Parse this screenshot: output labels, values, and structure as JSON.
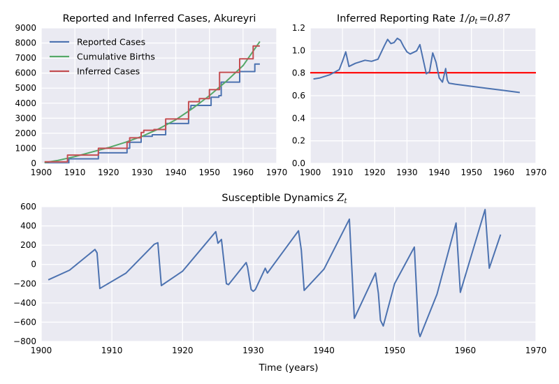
{
  "chart_data": [
    {
      "type": "line",
      "title": "Reported and Inferred Cases, Akureyri",
      "xlim": [
        1900,
        1970
      ],
      "ylim": [
        0,
        9000
      ],
      "xticks": [
        "1900",
        "1910",
        "1920",
        "1930",
        "1940",
        "1950",
        "1960",
        "1970"
      ],
      "yticks": [
        "0",
        "1000",
        "2000",
        "3000",
        "4000",
        "5000",
        "6000",
        "7000",
        "8000",
        "9000"
      ],
      "grid": true,
      "legend_position": "top-left",
      "series": [
        {
          "name": "Reported Cases",
          "color": "#4c72b0",
          "shape": "step",
          "x": [
            1901,
            1907.8,
            1908.2,
            1917,
            1925.5,
            1926.3,
            1929.7,
            1930.3,
            1933,
            1937,
            1943.8,
            1944.5,
            1950.5,
            1952.8,
            1953.5,
            1959,
            1963.5,
            1965
          ],
          "y": [
            0,
            0,
            300,
            700,
            1000,
            1400,
            1800,
            1800,
            1900,
            2650,
            3600,
            3850,
            4400,
            4500,
            5400,
            6100,
            6600,
            6600
          ]
        },
        {
          "name": "Cumulative Births",
          "color": "#55a868",
          "x": [
            1901,
            1905,
            1910,
            1915,
            1920,
            1925,
            1930,
            1935,
            1940,
            1945,
            1950,
            1955,
            1960,
            1965
          ],
          "y": [
            50,
            200,
            450,
            750,
            1050,
            1400,
            1800,
            2300,
            2900,
            3650,
            4500,
            5450,
            6500,
            8100
          ]
        },
        {
          "name": "Inferred Cases",
          "color": "#c44e52",
          "shape": "step",
          "x": [
            1901,
            1907.8,
            1917,
            1925.5,
            1926.3,
            1929.7,
            1930.5,
            1933.5,
            1937,
            1943.8,
            1947,
            1950,
            1953,
            1959,
            1963,
            1965
          ],
          "y": [
            100,
            550,
            1000,
            1400,
            1700,
            2050,
            2200,
            2250,
            2950,
            4100,
            4300,
            4900,
            6050,
            6950,
            7800,
            7800
          ]
        }
      ]
    },
    {
      "type": "line",
      "title_text": "Inferred Reporting Rate",
      "title_math": {
        "num": "1",
        "sym": "ρ",
        "sub": "t",
        "val": "=0.87"
      },
      "xlim": [
        1900,
        1970
      ],
      "ylim": [
        0.0,
        1.3
      ],
      "xticks": [
        "1900",
        "1910",
        "1920",
        "1930",
        "1940",
        "1950",
        "1960",
        "1970"
      ],
      "yticks": [
        "0.0",
        "0.2",
        "0.4",
        "0.6",
        "0.8",
        "1.0",
        "1.2"
      ],
      "grid": true,
      "hline": {
        "y": 0.87,
        "color": "#ff0000"
      },
      "series": [
        {
          "color": "#4c72b0",
          "x": [
            1901,
            1903,
            1906,
            1909,
            1910,
            1911,
            1912,
            1914,
            1917,
            1919,
            1921,
            1923,
            1924,
            1925,
            1926,
            1927,
            1928,
            1929,
            1930,
            1931,
            1933,
            1934,
            1935,
            1936,
            1937,
            1938,
            1939,
            1940,
            1941,
            1942,
            1942.5,
            1943,
            1945,
            1950,
            1955,
            1960,
            1965
          ],
          "y": [
            0.81,
            0.82,
            0.85,
            0.9,
            0.98,
            1.07,
            0.93,
            0.96,
            0.99,
            0.98,
            1.0,
            1.13,
            1.19,
            1.15,
            1.16,
            1.2,
            1.18,
            1.12,
            1.07,
            1.05,
            1.08,
            1.14,
            1.0,
            0.86,
            0.88,
            1.06,
            0.97,
            0.82,
            0.78,
            0.91,
            0.8,
            0.77,
            0.76,
            0.74,
            0.72,
            0.7,
            0.68
          ]
        }
      ]
    },
    {
      "type": "line",
      "title_text": "Susceptible Dynamics",
      "title_math": {
        "sym": "Z",
        "sub": "t"
      },
      "xlabel": "Time (years)",
      "xlim": [
        1900,
        1970
      ],
      "ylim": [
        -800,
        600
      ],
      "xticks": [
        "1900",
        "1910",
        "1920",
        "1930",
        "1940",
        "1950",
        "1960",
        "1970"
      ],
      "yticks": [
        "−800",
        "−600",
        "−400",
        "−200",
        "0",
        "200",
        "400",
        "600"
      ],
      "grid": true,
      "series": [
        {
          "color": "#4c72b0",
          "x": [
            1901,
            1904,
            1907.6,
            1907.9,
            1908.3,
            1912,
            1916,
            1916.5,
            1917,
            1920,
            1924.7,
            1925,
            1925.5,
            1926.2,
            1926.5,
            1929,
            1929.2,
            1929.7,
            1930,
            1930.3,
            1931.7,
            1932,
            1935,
            1936.4,
            1936.8,
            1937.2,
            1940,
            1943.6,
            1944.3,
            1947.3,
            1947.7,
            1948,
            1948.4,
            1950,
            1952.8,
            1953.4,
            1953.6,
            1956,
            1958.7,
            1959.3,
            1962.8,
            1963.4,
            1965
          ],
          "y": [
            -160,
            -60,
            155,
            120,
            -250,
            -90,
            210,
            225,
            -220,
            -70,
            340,
            220,
            260,
            -200,
            -210,
            20,
            -30,
            -260,
            -280,
            -260,
            -40,
            -90,
            210,
            350,
            150,
            -270,
            -50,
            470,
            -560,
            -90,
            -300,
            -580,
            -640,
            -200,
            180,
            -700,
            -750,
            -310,
            430,
            -290,
            570,
            -40,
            310
          ]
        }
      ]
    }
  ]
}
